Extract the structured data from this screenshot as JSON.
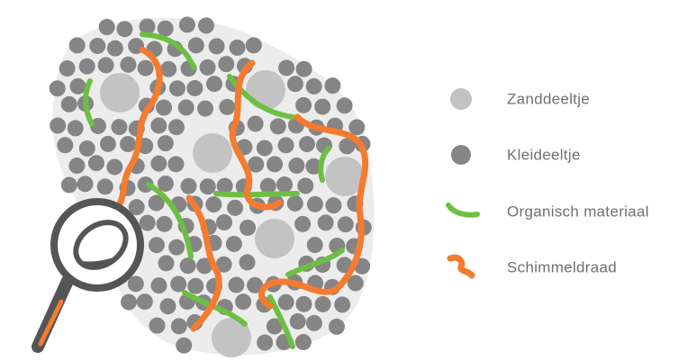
{
  "legend": {
    "items": [
      {
        "label": "Zanddeeltje"
      },
      {
        "label": "Kleideeltje"
      },
      {
        "label": "Organisch materiaal"
      },
      {
        "label": "Schimmeldraad"
      }
    ]
  }
}
